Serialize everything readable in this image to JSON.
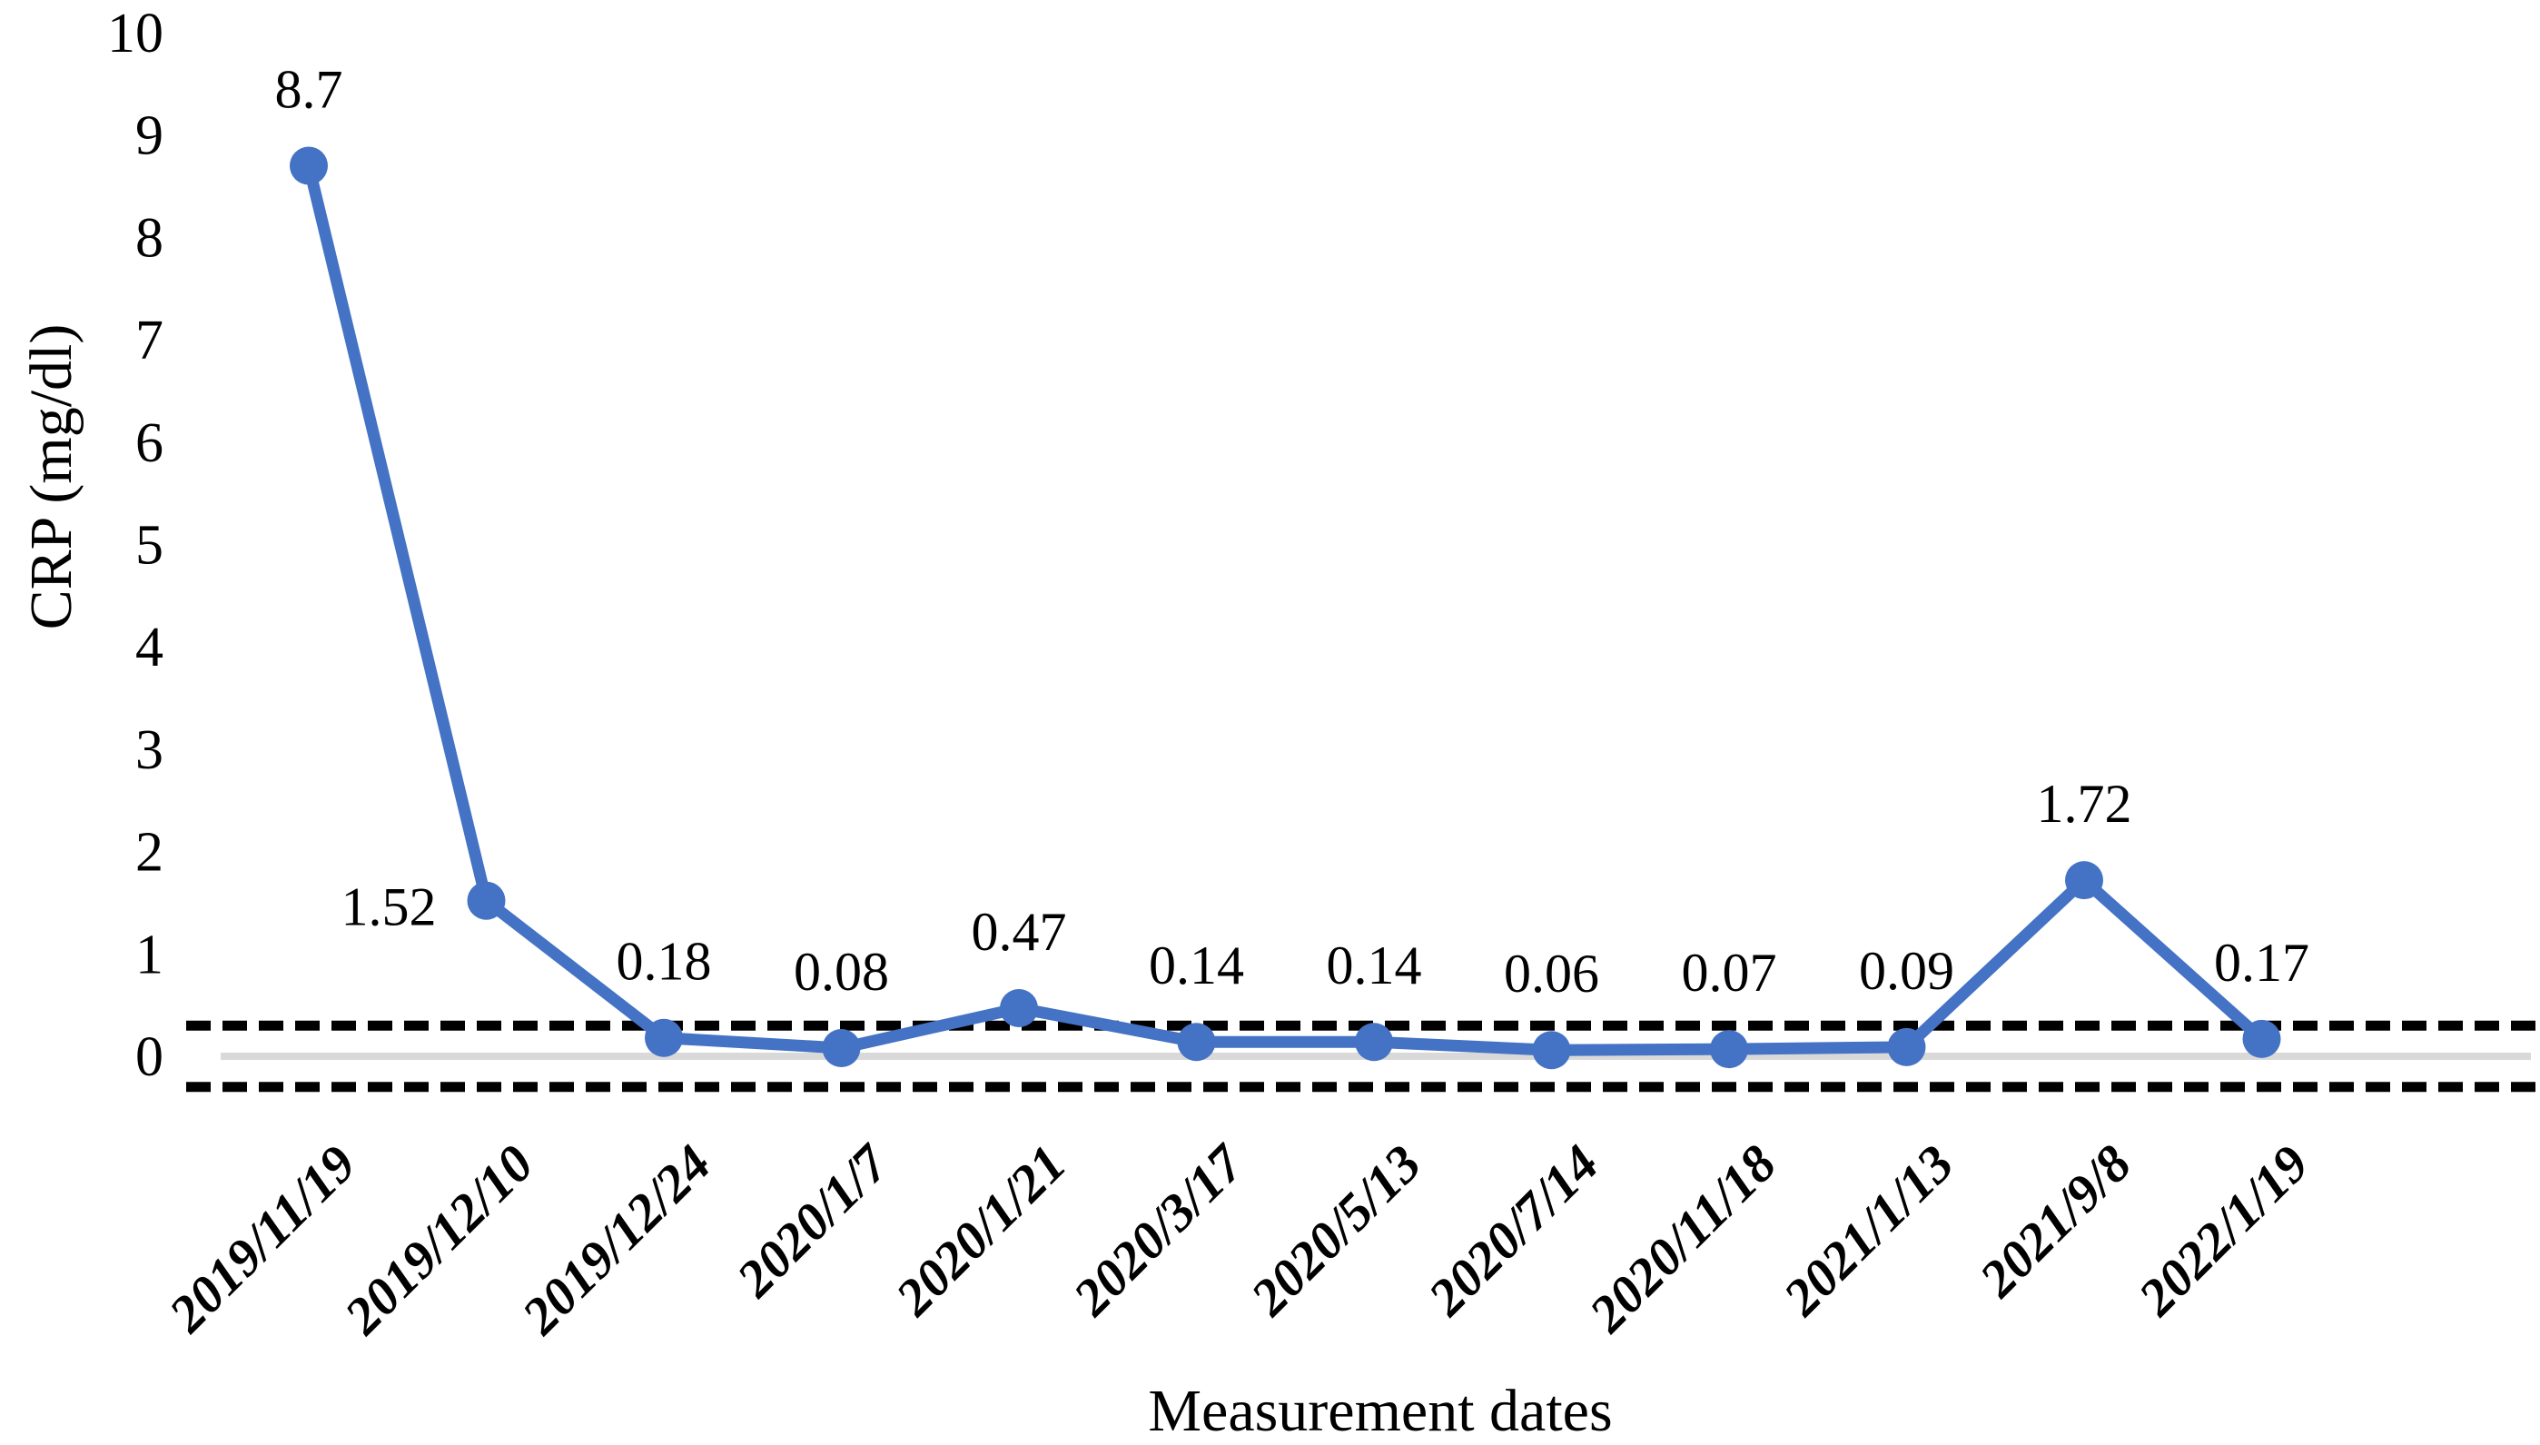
{
  "chart_data": {
    "type": "line",
    "title": "",
    "xlabel": "Measurement dates",
    "ylabel": "CRP (mg/dl)",
    "categories": [
      "2019/11/19",
      "2019/12/10",
      "2019/12/24",
      "2020/1/7",
      "2020/1/21",
      "2020/3/17",
      "2020/5/13",
      "2020/7/14",
      "2020/11/18",
      "2021/1/13",
      "2021/9/8",
      "2022/1/19"
    ],
    "series": [
      {
        "name": "CRP",
        "values": [
          8.7,
          1.52,
          0.18,
          0.08,
          0.47,
          0.14,
          0.14,
          0.06,
          0.07,
          0.09,
          1.72,
          0.17
        ],
        "data_labels": [
          "8.7",
          "1.52",
          "0.18",
          "0.08",
          "0.47",
          "0.14",
          "0.14",
          "0.06",
          "0.07",
          "0.09",
          "1.72",
          "0.17"
        ]
      }
    ],
    "ylim": [
      0,
      10
    ],
    "yticks": [
      0,
      1,
      2,
      3,
      4,
      5,
      6,
      7,
      8,
      9,
      10
    ],
    "reference_lines": {
      "upper_dashed": 0.3,
      "lower_dashed": -0.3,
      "zero_axis": 0
    },
    "legend_position": "none",
    "grid": false,
    "colors": {
      "series_line": "#4472C4",
      "marker_fill": "#4472C4",
      "zero_axis_line": "#D9D9D9",
      "reference_line": "#000000",
      "text": "#000000",
      "background": "#FFFFFF"
    }
  }
}
